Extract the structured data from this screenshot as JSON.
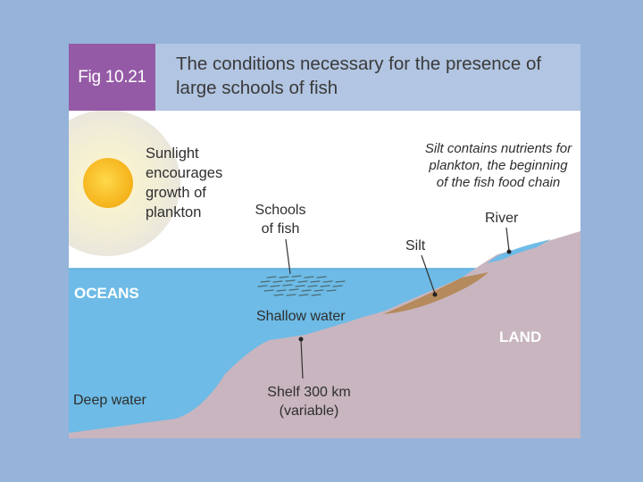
{
  "figure": {
    "number": "Fig 10.21",
    "title": "The conditions necessary for the presence of large schools of fish"
  },
  "labels": {
    "sunlight": "Sunlight encourages growth of plankton",
    "silt_note": "Silt contains nutrients for plankton, the beginning of the fish food chain",
    "schools": "Schools of fish",
    "river": "River",
    "silt": "Silt",
    "oceans": "OCEANS",
    "shallow": "Shallow water",
    "land": "LAND",
    "deep": "Deep water",
    "shelf": "Shelf 300 km (variable)"
  },
  "colors": {
    "page_background": "#96b3d9",
    "header_bar": "#b2c5e2",
    "badge": "#955aa6",
    "ocean": "#6dbbe6",
    "land": "#c8b5bf",
    "silt": "#b58a5c",
    "sun": "#f7bd1e",
    "sun_glow": "#f0ecd0"
  }
}
